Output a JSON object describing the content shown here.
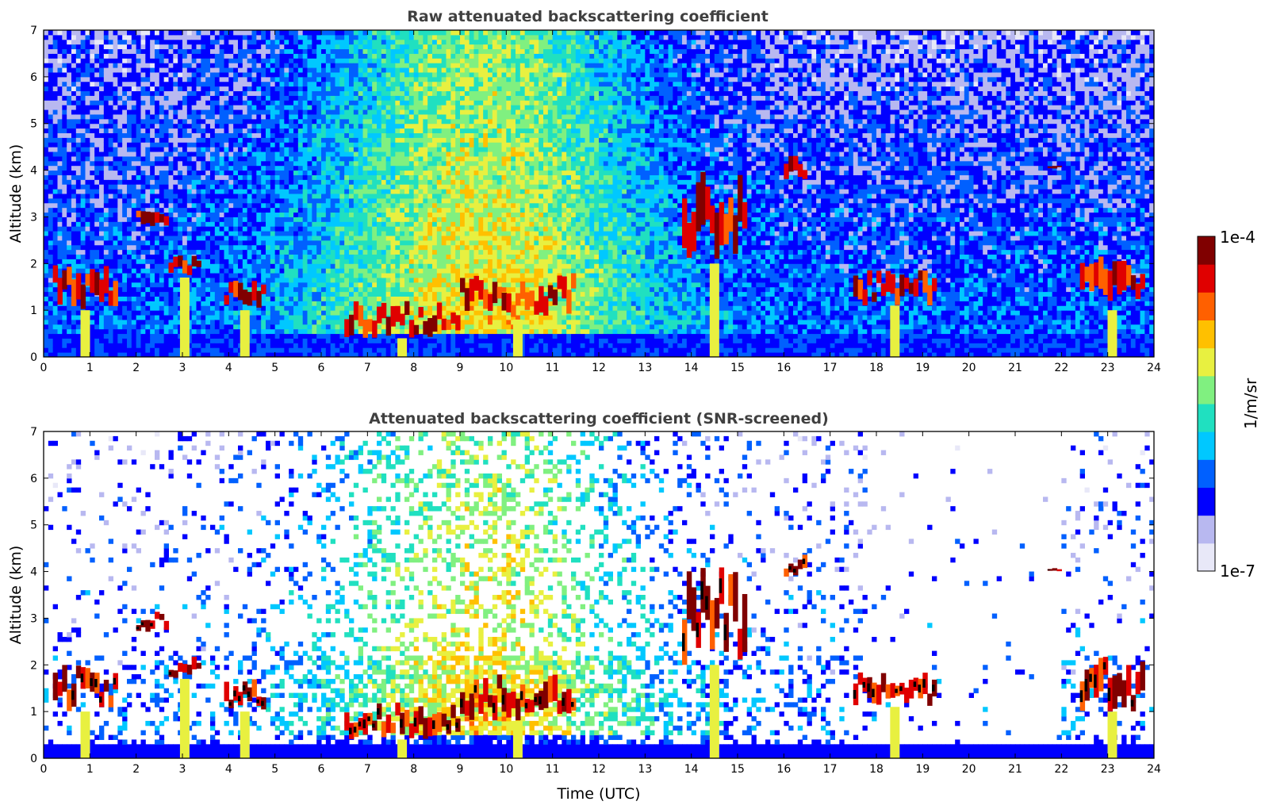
{
  "chart_data": [
    {
      "type": "heatmap",
      "title": "Raw attenuated backscattering coefficient",
      "xlabel": "",
      "ylabel": "Altitude (km)",
      "xlim": [
        0,
        24
      ],
      "ylim": [
        0,
        7
      ],
      "x_ticks": [
        "0",
        "1",
        "2",
        "3",
        "4",
        "5",
        "6",
        "7",
        "8",
        "9",
        "10",
        "11",
        "12",
        "13",
        "14",
        "15",
        "16",
        "17",
        "18",
        "19",
        "20",
        "21",
        "22",
        "23",
        "24"
      ],
      "y_ticks": [
        "0",
        "1",
        "2",
        "3",
        "4",
        "5",
        "6",
        "7"
      ],
      "screened": false,
      "cloud_layers": [
        {
          "t0": 0.2,
          "t1": 1.6,
          "alt0": 1.0,
          "alt1": 2.0
        },
        {
          "t0": 2.0,
          "t1": 2.7,
          "alt0": 2.7,
          "alt1": 3.2
        },
        {
          "t0": 2.7,
          "t1": 3.4,
          "alt0": 1.7,
          "alt1": 2.2
        },
        {
          "t0": 3.9,
          "t1": 4.8,
          "alt0": 1.0,
          "alt1": 1.7
        },
        {
          "t0": 6.5,
          "t1": 9.0,
          "alt0": 0.4,
          "alt1": 1.2
        },
        {
          "t0": 9.0,
          "t1": 11.5,
          "alt0": 0.8,
          "alt1": 1.8
        },
        {
          "t0": 13.8,
          "t1": 15.2,
          "alt0": 2.0,
          "alt1": 4.1
        },
        {
          "t0": 16.0,
          "t1": 16.5,
          "alt0": 3.8,
          "alt1": 4.4
        },
        {
          "t0": 17.5,
          "t1": 19.3,
          "alt0": 1.1,
          "alt1": 1.9
        },
        {
          "t0": 21.7,
          "t1": 22.0,
          "alt0": 4.0,
          "alt1": 4.1
        },
        {
          "t0": 22.4,
          "t1": 23.8,
          "alt0": 1.0,
          "alt1": 2.2
        }
      ]
    },
    {
      "type": "heatmap",
      "title": "Attenuated backscattering coefficient (SNR-screened)",
      "xlabel": "Time (UTC)",
      "ylabel": "Altitude (km)",
      "xlim": [
        0,
        24
      ],
      "ylim": [
        0,
        7
      ],
      "x_ticks": [
        "0",
        "1",
        "2",
        "3",
        "4",
        "5",
        "6",
        "7",
        "8",
        "9",
        "10",
        "11",
        "12",
        "13",
        "14",
        "15",
        "16",
        "17",
        "18",
        "19",
        "20",
        "21",
        "22",
        "23",
        "24"
      ],
      "y_ticks": [
        "0",
        "1",
        "2",
        "3",
        "4",
        "5",
        "6",
        "7"
      ],
      "screened": true,
      "cloud_layers": [
        {
          "t0": 0.2,
          "t1": 1.6,
          "alt0": 1.0,
          "alt1": 2.0
        },
        {
          "t0": 2.0,
          "t1": 2.7,
          "alt0": 2.7,
          "alt1": 3.2
        },
        {
          "t0": 2.7,
          "t1": 3.4,
          "alt0": 1.7,
          "alt1": 2.2
        },
        {
          "t0": 3.9,
          "t1": 4.8,
          "alt0": 1.0,
          "alt1": 1.7
        },
        {
          "t0": 6.5,
          "t1": 9.0,
          "alt0": 0.4,
          "alt1": 1.2
        },
        {
          "t0": 9.0,
          "t1": 11.5,
          "alt0": 0.8,
          "alt1": 1.8
        },
        {
          "t0": 13.8,
          "t1": 15.2,
          "alt0": 2.0,
          "alt1": 4.1
        },
        {
          "t0": 16.0,
          "t1": 16.5,
          "alt0": 3.8,
          "alt1": 4.4
        },
        {
          "t0": 17.5,
          "t1": 19.3,
          "alt0": 1.1,
          "alt1": 1.9
        },
        {
          "t0": 21.7,
          "t1": 22.0,
          "alt0": 4.0,
          "alt1": 4.1
        },
        {
          "t0": 22.4,
          "t1": 23.8,
          "alt0": 1.0,
          "alt1": 2.2
        }
      ]
    }
  ],
  "colorbar": {
    "label": "1/m/sr",
    "min_label": "1e-7",
    "max_label": "1e-4",
    "scale": "log",
    "colormap": [
      "#e8e8f8",
      "#b8b8f0",
      "#0000ff",
      "#0060ff",
      "#00c8ff",
      "#20e0c0",
      "#80f080",
      "#e8f040",
      "#ffc000",
      "#ff6000",
      "#e00000",
      "#800000"
    ]
  }
}
